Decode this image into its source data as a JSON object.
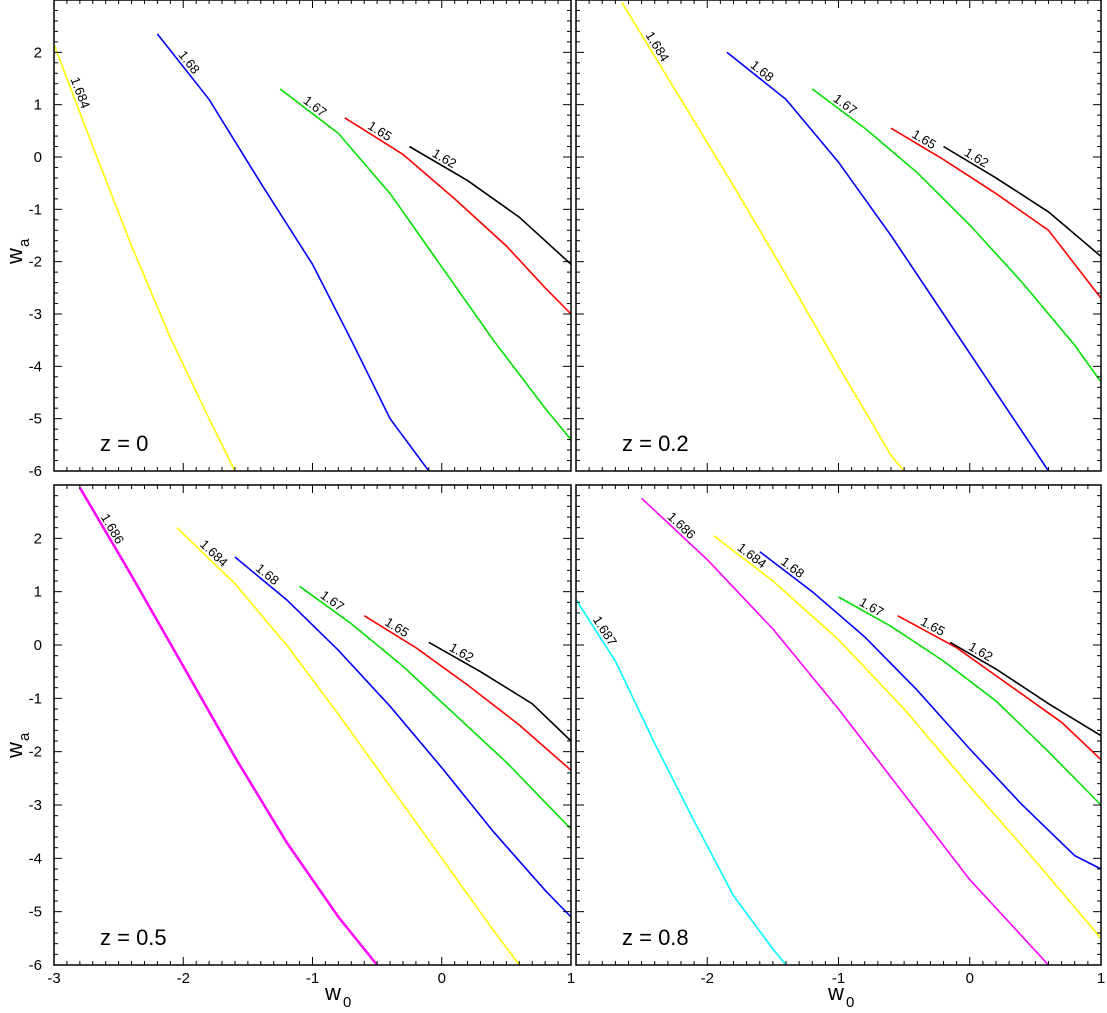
{
  "colors": {
    "1.62": "#000000",
    "1.65": "#ff0000",
    "1.67": "#00e000",
    "1.68": "#0000ff",
    "1.684": "#ffff00",
    "1.686": "#ff00ff",
    "1.687": "#00ffff"
  },
  "chart_data": {
    "type": "line",
    "shared": {
      "x_axis": "w",
      "x_axis_sub": "0",
      "y_axis": "w",
      "y_axis_sub": "a",
      "xlim": [
        -3,
        1
      ],
      "ylim": [
        -6,
        3
      ],
      "x_ticks": [
        "-3",
        "-2",
        "-1",
        "0",
        "1"
      ],
      "y_ticks": [
        "-6",
        "-5",
        "-4",
        "-3",
        "-2",
        "-1",
        "0",
        "1",
        "2"
      ]
    },
    "panels": [
      {
        "label": "z = 0",
        "contours": [
          {
            "level": "1.684",
            "points": [
              [
                -3.0,
                2.15
              ],
              [
                -2.7,
                0.2
              ],
              [
                -2.4,
                -1.7
              ],
              [
                -2.1,
                -3.45
              ],
              [
                -1.8,
                -5.0
              ],
              [
                -1.6,
                -6.0
              ]
            ]
          },
          {
            "level": "1.68",
            "points": [
              [
                -2.2,
                2.35
              ],
              [
                -1.8,
                1.1
              ],
              [
                -1.4,
                -0.5
              ],
              [
                -1.0,
                -2.05
              ],
              [
                -0.7,
                -3.5
              ],
              [
                -0.4,
                -5.0
              ],
              [
                -0.1,
                -6.0
              ]
            ]
          },
          {
            "level": "1.67",
            "points": [
              [
                -1.25,
                1.3
              ],
              [
                -0.8,
                0.45
              ],
              [
                -0.4,
                -0.7
              ],
              [
                0.0,
                -2.1
              ],
              [
                0.4,
                -3.5
              ],
              [
                0.8,
                -4.8
              ],
              [
                1.0,
                -5.4
              ]
            ]
          },
          {
            "level": "1.65",
            "points": [
              [
                -0.75,
                0.75
              ],
              [
                -0.3,
                0.05
              ],
              [
                0.1,
                -0.8
              ],
              [
                0.5,
                -1.7
              ],
              [
                0.8,
                -2.5
              ],
              [
                1.0,
                -3.0
              ]
            ]
          },
          {
            "level": "1.62",
            "points": [
              [
                -0.25,
                0.2
              ],
              [
                0.2,
                -0.45
              ],
              [
                0.6,
                -1.15
              ],
              [
                1.0,
                -2.05
              ]
            ]
          }
        ]
      },
      {
        "label": "z = 0.2",
        "contours": [
          {
            "level": "1.684",
            "points": [
              [
                -2.65,
                2.95
              ],
              [
                -2.2,
                1.1
              ],
              [
                -1.8,
                -0.55
              ],
              [
                -1.4,
                -2.25
              ],
              [
                -1.0,
                -4.0
              ],
              [
                -0.6,
                -5.7
              ],
              [
                -0.5,
                -6.0
              ]
            ]
          },
          {
            "level": "1.68",
            "points": [
              [
                -1.85,
                2.0
              ],
              [
                -1.4,
                1.1
              ],
              [
                -1.0,
                -0.1
              ],
              [
                -0.6,
                -1.5
              ],
              [
                -0.2,
                -3.0
              ],
              [
                0.2,
                -4.5
              ],
              [
                0.6,
                -6.0
              ]
            ]
          },
          {
            "level": "1.67",
            "points": [
              [
                -1.2,
                1.3
              ],
              [
                -0.8,
                0.55
              ],
              [
                -0.4,
                -0.3
              ],
              [
                0.0,
                -1.3
              ],
              [
                0.4,
                -2.4
              ],
              [
                0.8,
                -3.6
              ],
              [
                1.0,
                -4.3
              ]
            ]
          },
          {
            "level": "1.65",
            "points": [
              [
                -0.6,
                0.55
              ],
              [
                -0.2,
                -0.05
              ],
              [
                0.2,
                -0.7
              ],
              [
                0.6,
                -1.4
              ],
              [
                1.0,
                -2.7
              ]
            ]
          },
          {
            "level": "1.62",
            "points": [
              [
                -0.2,
                0.2
              ],
              [
                0.2,
                -0.4
              ],
              [
                0.6,
                -1.05
              ],
              [
                1.0,
                -1.9
              ]
            ]
          }
        ]
      },
      {
        "label": "z = 0.5",
        "contours": [
          {
            "level": "1.686",
            "points": [
              [
                -2.8,
                2.95
              ],
              [
                -2.4,
                1.3
              ],
              [
                -2.0,
                -0.4
              ],
              [
                -1.6,
                -2.1
              ],
              [
                -1.2,
                -3.7
              ],
              [
                -0.8,
                -5.1
              ],
              [
                -0.5,
                -6.0
              ]
            ]
          },
          {
            "level": "1.684",
            "points": [
              [
                -2.05,
                2.2
              ],
              [
                -1.6,
                1.15
              ],
              [
                -1.2,
                0.0
              ],
              [
                -0.8,
                -1.3
              ],
              [
                -0.4,
                -2.65
              ],
              [
                0.0,
                -4.0
              ],
              [
                0.4,
                -5.35
              ],
              [
                0.6,
                -6.0
              ]
            ]
          },
          {
            "level": "1.68",
            "points": [
              [
                -1.6,
                1.65
              ],
              [
                -1.2,
                0.85
              ],
              [
                -0.8,
                -0.1
              ],
              [
                -0.4,
                -1.15
              ],
              [
                0.0,
                -2.3
              ],
              [
                0.4,
                -3.5
              ],
              [
                0.8,
                -4.6
              ],
              [
                1.0,
                -5.1
              ]
            ]
          },
          {
            "level": "1.67",
            "points": [
              [
                -1.1,
                1.1
              ],
              [
                -0.7,
                0.4
              ],
              [
                -0.3,
                -0.4
              ],
              [
                0.1,
                -1.3
              ],
              [
                0.5,
                -2.2
              ],
              [
                1.0,
                -3.45
              ]
            ]
          },
          {
            "level": "1.65",
            "points": [
              [
                -0.6,
                0.55
              ],
              [
                -0.2,
                -0.05
              ],
              [
                0.2,
                -0.75
              ],
              [
                0.6,
                -1.5
              ],
              [
                1.0,
                -2.35
              ]
            ]
          },
          {
            "level": "1.62",
            "points": [
              [
                -0.1,
                0.05
              ],
              [
                0.3,
                -0.5
              ],
              [
                0.7,
                -1.1
              ],
              [
                1.0,
                -1.8
              ]
            ]
          }
        ]
      },
      {
        "label": "z = 0.8",
        "contours": [
          {
            "level": "1.687",
            "points": [
              [
                -3.0,
                0.85
              ],
              [
                -2.7,
                -0.3
              ],
              [
                -2.4,
                -1.85
              ],
              [
                -2.1,
                -3.3
              ],
              [
                -1.8,
                -4.7
              ],
              [
                -1.5,
                -5.7
              ],
              [
                -1.4,
                -6.0
              ]
            ]
          },
          {
            "level": "1.686",
            "points": [
              [
                -2.5,
                2.75
              ],
              [
                -2.0,
                1.6
              ],
              [
                -1.5,
                0.3
              ],
              [
                -1.0,
                -1.2
              ],
              [
                -0.5,
                -2.8
              ],
              [
                0.0,
                -4.4
              ],
              [
                0.6,
                -6.0
              ]
            ]
          },
          {
            "level": "1.684",
            "points": [
              [
                -1.95,
                2.05
              ],
              [
                -1.5,
                1.2
              ],
              [
                -1.0,
                0.1
              ],
              [
                -0.5,
                -1.2
              ],
              [
                0.0,
                -2.65
              ],
              [
                0.5,
                -4.05
              ],
              [
                1.0,
                -5.5
              ]
            ]
          },
          {
            "level": "1.68",
            "points": [
              [
                -1.6,
                1.75
              ],
              [
                -1.2,
                1.0
              ],
              [
                -0.8,
                0.15
              ],
              [
                -0.4,
                -0.85
              ],
              [
                0.0,
                -1.95
              ],
              [
                0.4,
                -3.0
              ],
              [
                0.8,
                -3.95
              ],
              [
                1.0,
                -4.2
              ]
            ]
          },
          {
            "level": "1.67",
            "points": [
              [
                -1.0,
                0.9
              ],
              [
                -0.6,
                0.35
              ],
              [
                -0.2,
                -0.3
              ],
              [
                0.2,
                -1.05
              ],
              [
                0.6,
                -2.0
              ],
              [
                1.0,
                -3.0
              ]
            ]
          },
          {
            "level": "1.65",
            "points": [
              [
                -0.55,
                0.55
              ],
              [
                -0.1,
                -0.05
              ],
              [
                0.3,
                -0.75
              ],
              [
                0.7,
                -1.45
              ],
              [
                1.0,
                -2.15
              ]
            ]
          },
          {
            "level": "1.62",
            "points": [
              [
                -0.15,
                0.05
              ],
              [
                0.2,
                -0.45
              ],
              [
                0.6,
                -1.1
              ],
              [
                1.0,
                -1.7
              ]
            ]
          }
        ]
      }
    ]
  }
}
